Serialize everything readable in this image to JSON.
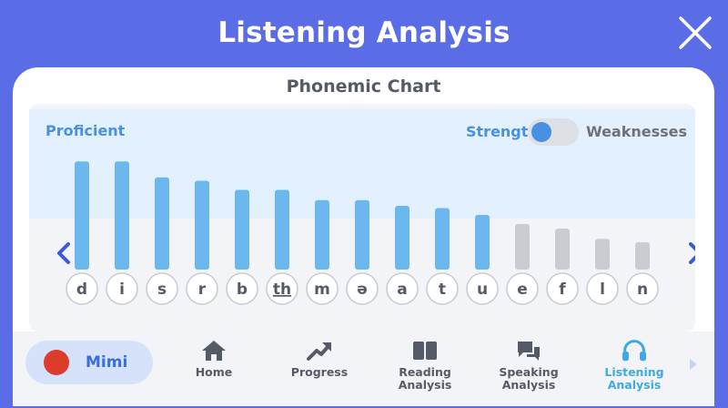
{
  "header": {
    "title": "Listening Analysis"
  },
  "chart_title": "Phonemic Chart",
  "zone_label": "Proficient",
  "toggle": {
    "left_label": "Strengths",
    "right_label": "Weaknesses",
    "state": "strengths"
  },
  "colors": {
    "strength": "#6cb8ee",
    "weakness": "#c9cdd2",
    "background": "#5a6de6",
    "accent": "#4a90e2"
  },
  "chart_data": {
    "type": "bar",
    "categories": [
      "d",
      "i",
      "s",
      "r",
      "b",
      "th",
      "m",
      "ə",
      "a",
      "t",
      "u",
      "e",
      "f",
      "l",
      "n"
    ],
    "values": [
      95,
      95,
      81,
      78,
      70,
      70,
      61,
      61,
      56,
      54,
      48,
      40,
      36,
      27,
      24
    ],
    "groups": [
      "strength",
      "strength",
      "strength",
      "strength",
      "strength",
      "strength",
      "strength",
      "strength",
      "strength",
      "strength",
      "strength",
      "weakness",
      "weakness",
      "weakness",
      "weakness"
    ],
    "underlined": [
      "th"
    ],
    "ylim": [
      0,
      100
    ]
  },
  "nav": {
    "profile": {
      "name": "Mimi"
    },
    "tabs": [
      {
        "label": "Home",
        "icon": "home-icon"
      },
      {
        "label": "Progress",
        "icon": "trend-arrow-icon"
      },
      {
        "label": "Reading\nAnalysis",
        "icon": "book-icon"
      },
      {
        "label": "Speaking\nAnalysis",
        "icon": "speech-bubble-icon"
      },
      {
        "label": "Listening\nAnalysis",
        "icon": "headphones-icon",
        "active": true
      }
    ]
  }
}
